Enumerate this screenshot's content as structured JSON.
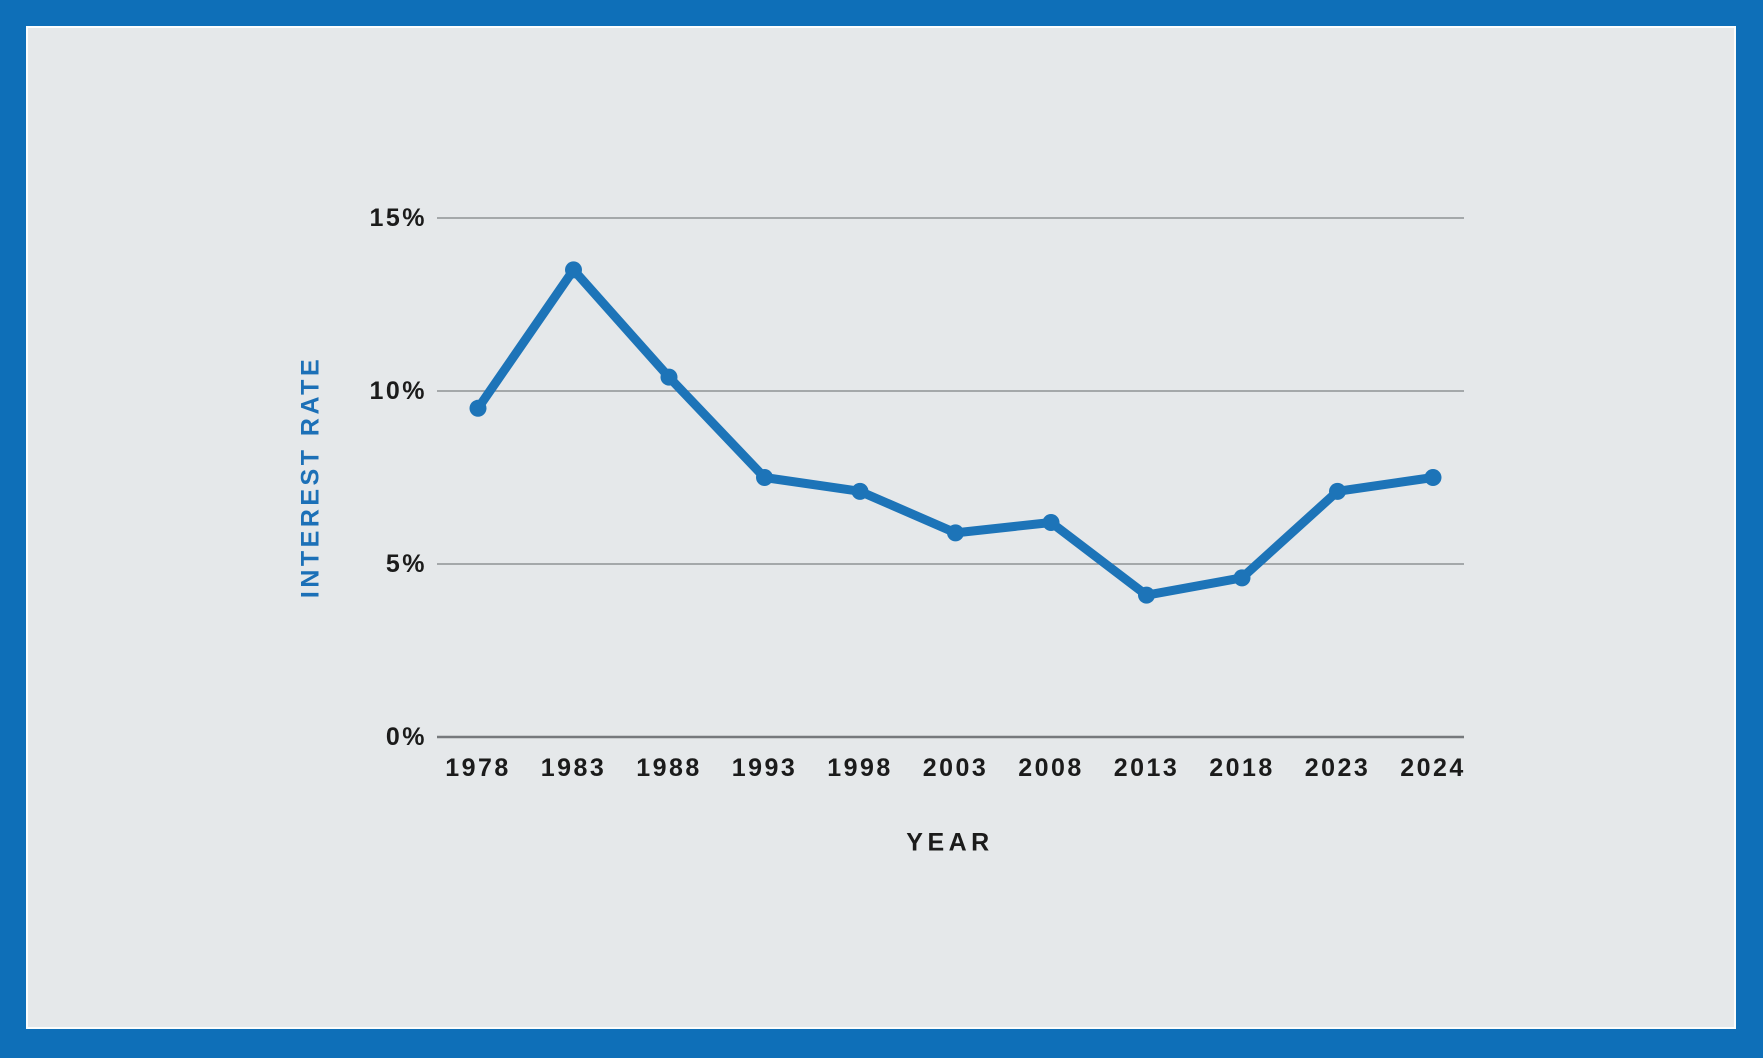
{
  "chart_data": {
    "type": "line",
    "title": "",
    "categories": [
      "1978",
      "1983",
      "1988",
      "1993",
      "1998",
      "2003",
      "2008",
      "2013",
      "2018",
      "2023",
      "2024"
    ],
    "series": [
      {
        "name": "Interest Rate",
        "values": [
          9.5,
          13.5,
          10.4,
          7.5,
          7.1,
          5.9,
          6.2,
          4.1,
          4.6,
          7.1,
          7.5
        ]
      }
    ],
    "xlabel": "YEAR",
    "ylabel": "INTEREST RATE",
    "ylim": [
      0,
      15
    ],
    "yticks": [
      {
        "value": 0,
        "label": "0%"
      },
      {
        "value": 5,
        "label": "5%"
      },
      {
        "value": 10,
        "label": "10%"
      },
      {
        "value": 15,
        "label": "15%"
      }
    ],
    "grid": "horizontal-gridlines-on",
    "legend_position": "none",
    "colors": {
      "frame": "#0e6fb8",
      "panel_background": "#e5e8ea",
      "panel_hairline": "#fbfdfd",
      "line": "#1d74b8",
      "marker": "#1d74b8",
      "gridline": "#8f9294",
      "zero_axis_line": "#76797c",
      "tick_text": "#1b1b1b",
      "x_axis_title_color": "#1b1b1b",
      "y_axis_title_color": "#1c70b7"
    }
  }
}
